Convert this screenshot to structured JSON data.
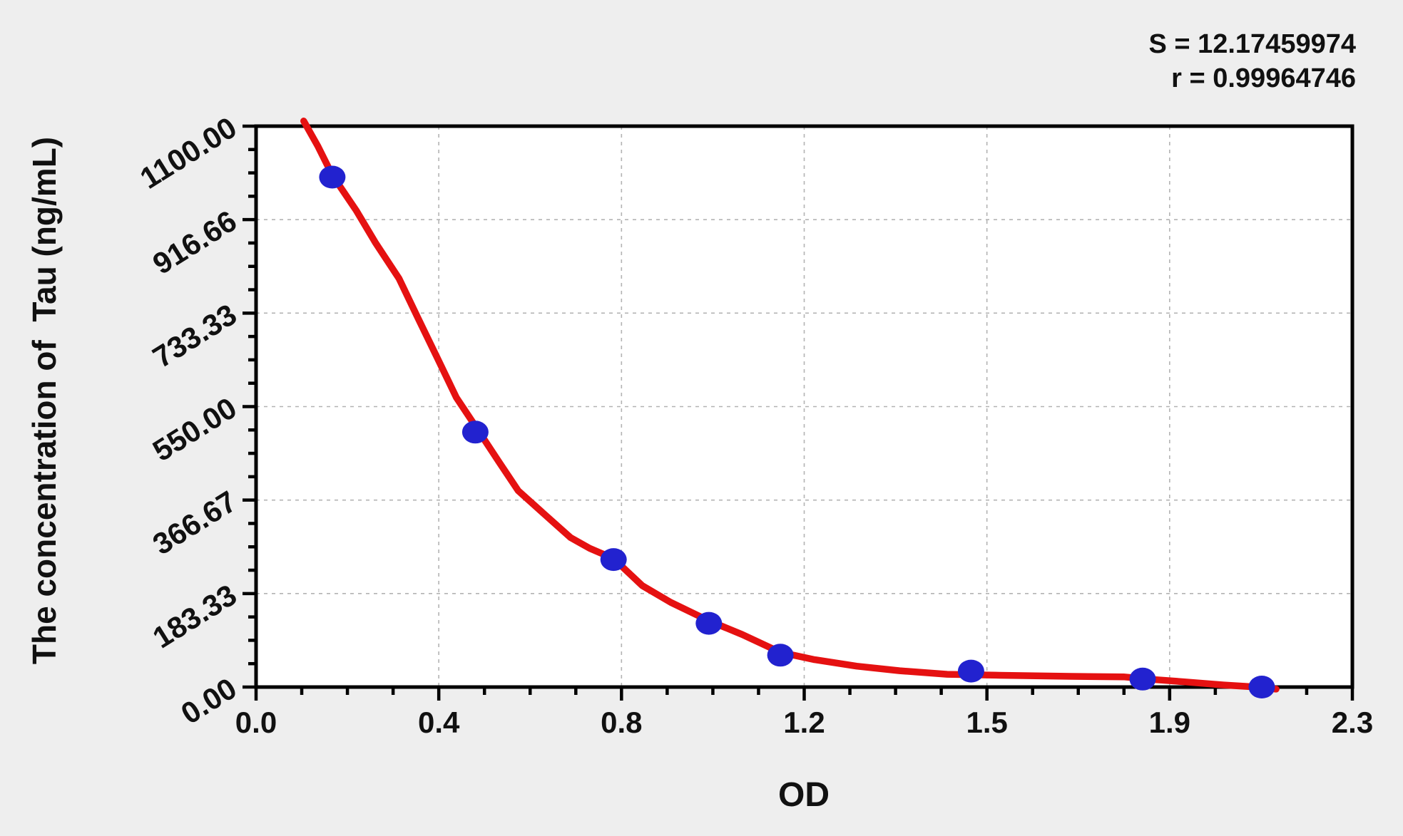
{
  "chart_data": {
    "type": "scatter",
    "title": "",
    "xlabel": "OD",
    "ylabel": "The concentration of  Tau (ng/mL)",
    "xlim": [
      0.0,
      2.3
    ],
    "ylim": [
      0,
      1100
    ],
    "x_tick_labels": [
      "0.0",
      "0.4",
      "0.8",
      "1.2",
      "1.5",
      "1.9",
      "2.3"
    ],
    "y_tick_labels": [
      "0.00",
      "183.33",
      "366.67",
      "550.00",
      "733.33",
      "916.66",
      "1100.00"
    ],
    "minor_ticks_per_interval": 3,
    "grid": {
      "show": true,
      "style": "dashed",
      "at": "major-ticks"
    },
    "legend_position": "none",
    "stats": {
      "s_label": "S = 12.17459974",
      "r_label": "r = 0.99964746"
    },
    "colors": {
      "marker": "#2222cf",
      "curve": "#e51111",
      "frame": "#000000",
      "grid": "#b3b3b3",
      "background": "#eeeeee",
      "plot_background": "#ffffff"
    },
    "series": [
      {
        "name": "standard-points",
        "type": "scatter",
        "color": "#2222cf",
        "points": [
          [
            0.16,
            1000
          ],
          [
            0.46,
            500
          ],
          [
            0.75,
            250
          ],
          [
            0.95,
            125
          ],
          [
            1.1,
            62.5
          ],
          [
            1.5,
            31.25
          ],
          [
            1.86,
            15.625
          ],
          [
            2.11,
            0
          ]
        ]
      },
      {
        "name": "fitted-curve",
        "type": "line",
        "color": "#e51111",
        "points": [
          [
            0.1,
            1110
          ],
          [
            0.13,
            1060
          ],
          [
            0.16,
            1004
          ],
          [
            0.21,
            935
          ],
          [
            0.25,
            872
          ],
          [
            0.3,
            801
          ],
          [
            0.34,
            723
          ],
          [
            0.38,
            646
          ],
          [
            0.42,
            568
          ],
          [
            0.46,
            512
          ],
          [
            0.51,
            441
          ],
          [
            0.55,
            385
          ],
          [
            0.6,
            343
          ],
          [
            0.66,
            293
          ],
          [
            0.7,
            272
          ],
          [
            0.75,
            252
          ],
          [
            0.81,
            199
          ],
          [
            0.87,
            166
          ],
          [
            0.95,
            130
          ],
          [
            1.02,
            103
          ],
          [
            1.1,
            68
          ],
          [
            1.17,
            54
          ],
          [
            1.26,
            41
          ],
          [
            1.35,
            32
          ],
          [
            1.45,
            25
          ],
          [
            1.56,
            23
          ],
          [
            1.71,
            21
          ],
          [
            1.82,
            20
          ],
          [
            1.88,
            15
          ],
          [
            1.95,
            10
          ],
          [
            2.03,
            4
          ],
          [
            2.1,
            0
          ],
          [
            2.14,
            -4
          ]
        ]
      }
    ]
  }
}
